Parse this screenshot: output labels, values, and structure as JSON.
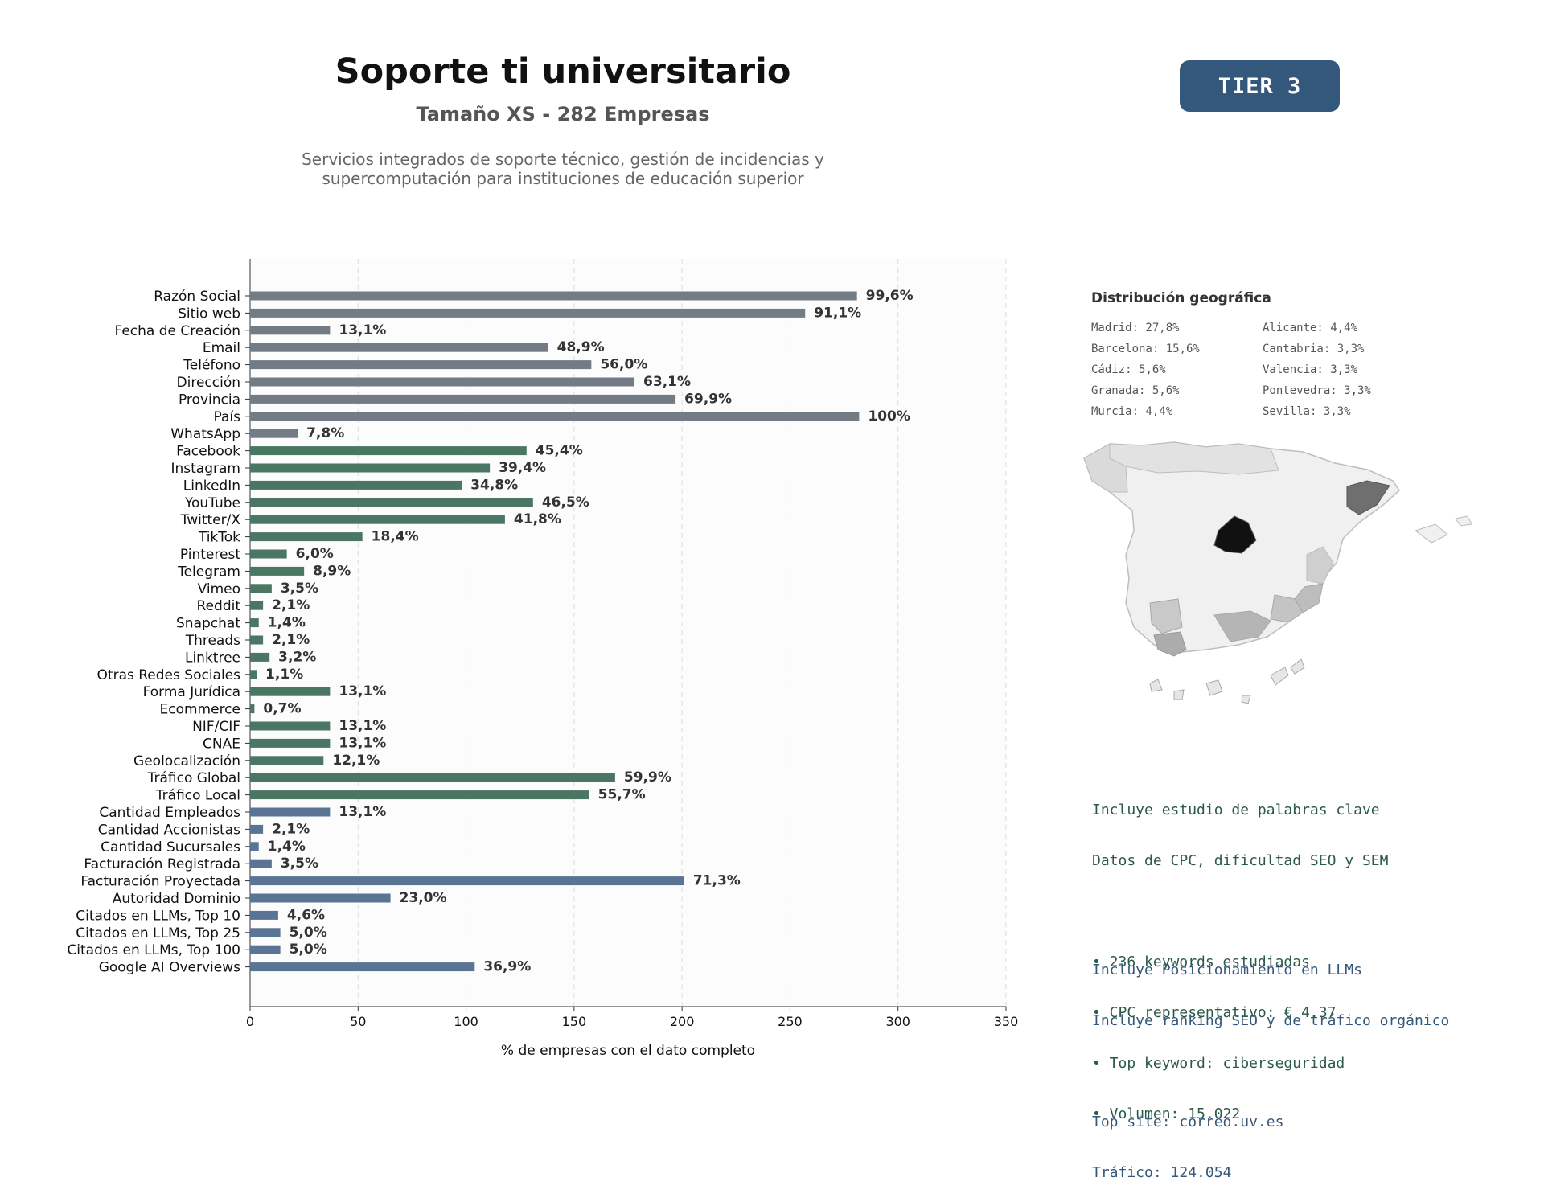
{
  "header": {
    "title": "Soporte ti universitario",
    "subtitle": "Tamaño XS - 282 Empresas",
    "description_line1": "Servicios integrados de soporte técnico, gestión de incidencias y",
    "description_line2": "supercomputación para instituciones de educación superior",
    "tier_label": "TIER 3"
  },
  "colors": {
    "gray": "#737b85",
    "green": "#4a7663",
    "blue": "#5a7593",
    "tier_bg": "#34587b",
    "text_green": "#2b5a47",
    "text_blue": "#34587b"
  },
  "chart_data": {
    "type": "bar",
    "orientation": "horizontal",
    "xlabel": "% de empresas con el dato completo",
    "xlim": [
      0,
      350
    ],
    "xticks": [
      0,
      50,
      100,
      150,
      200,
      250,
      300,
      350
    ],
    "grid": "vertical dashed",
    "categories": [
      "Razón Social",
      "Sitio web",
      "Fecha de Creación",
      "Email",
      "Teléfono",
      "Dirección",
      "Provincia",
      "País",
      "WhatsApp",
      "Facebook",
      "Instagram",
      "LinkedIn",
      "YouTube",
      "Twitter/X",
      "TikTok",
      "Pinterest",
      "Telegram",
      "Vimeo",
      "Reddit",
      "Snapchat",
      "Threads",
      "Linktree",
      "Otras Redes Sociales",
      "Forma Jurídica",
      "Ecommerce",
      "NIF/CIF",
      "CNAE",
      "Geolocalización",
      "Tráfico Global",
      "Tráfico Local",
      "Cantidad Empleados",
      "Cantidad Accionistas",
      "Cantidad Sucursales",
      "Facturación Registrada",
      "Facturación Proyectada",
      "Autoridad Dominio",
      "Citados en LLMs, Top 10",
      "Citados en LLMs, Top 25",
      "Citados en LLMs, Top 100",
      "Google AI Overviews"
    ],
    "values": [
      281,
      257,
      37,
      138,
      158,
      178,
      197,
      282,
      22,
      128,
      111,
      98,
      131,
      118,
      52,
      17,
      25,
      10,
      6,
      4,
      6,
      9,
      3,
      37,
      2,
      37,
      37,
      34,
      169,
      157,
      37,
      6,
      4,
      10,
      201,
      65,
      13,
      14,
      14,
      104
    ],
    "labels": [
      "99,6%",
      "91,1%",
      "13,1%",
      "48,9%",
      "56,0%",
      "63,1%",
      "69,9%",
      "100%",
      "7,8%",
      "45,4%",
      "39,4%",
      "34,8%",
      "46,5%",
      "41,8%",
      "18,4%",
      "6,0%",
      "8,9%",
      "3,5%",
      "2,1%",
      "1,4%",
      "2,1%",
      "3,2%",
      "1,1%",
      "13,1%",
      "0,7%",
      "13,1%",
      "13,1%",
      "12,1%",
      "59,9%",
      "55,7%",
      "13,1%",
      "2,1%",
      "1,4%",
      "3,5%",
      "71,3%",
      "23,0%",
      "4,6%",
      "5,0%",
      "5,0%",
      "36,9%"
    ],
    "groups": [
      "gray",
      "gray",
      "gray",
      "gray",
      "gray",
      "gray",
      "gray",
      "gray",
      "gray",
      "green",
      "green",
      "green",
      "green",
      "green",
      "green",
      "green",
      "green",
      "green",
      "green",
      "green",
      "green",
      "green",
      "green",
      "green",
      "green",
      "green",
      "green",
      "green",
      "green",
      "green",
      "blue",
      "blue",
      "blue",
      "blue",
      "blue",
      "blue",
      "blue",
      "blue",
      "blue",
      "blue"
    ]
  },
  "geo": {
    "title": "Distribución geográfica",
    "items_left": [
      "Madrid: 27,8%",
      "Barcelona: 15,6%",
      "Cádiz: 5,6%",
      "Granada: 5,6%",
      "Murcia: 4,4%"
    ],
    "items_right": [
      "Alicante: 4,4%",
      "Cantabria: 3,3%",
      "Valencia: 3,3%",
      "Pontevedra: 3,3%",
      "Sevilla: 3,3%"
    ]
  },
  "keywords": {
    "line1": "Incluye estudio de palabras clave",
    "line2": "Datos de CPC, dificultad SEO y SEM",
    "bullet1": "• 236 keywords estudiadas",
    "bullet2": "• CPC representativo: € 4.37",
    "bullet3": "• Top keyword: ciberseguridad",
    "bullet4": "• Volumen: 15.022"
  },
  "llm": {
    "line1": "Incluye Posicionamiento en LLMs",
    "line2": "Incluye ranking SEO y de tráfico orgánico",
    "top_site": "Top site: correo.uv.es",
    "traffic": "Tráfico: 124.054"
  }
}
